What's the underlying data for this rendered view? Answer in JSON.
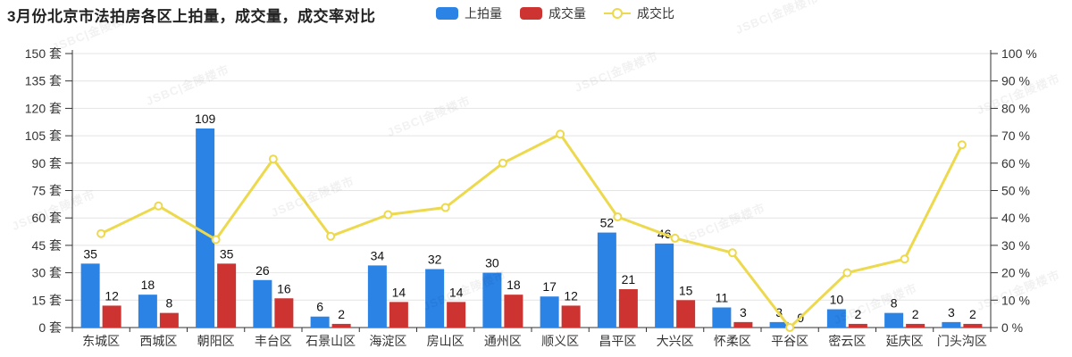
{
  "watermark": {
    "text": "JSBC|金陵楼市"
  },
  "chart_data": {
    "type": "bar",
    "subtype": "grouped-bar-with-line",
    "title": "3月份北京市法拍房各区上拍量，成交量，成交率对比",
    "categories": [
      "东城区",
      "西城区",
      "朝阳区",
      "丰台区",
      "石景山区",
      "海淀区",
      "房山区",
      "通州区",
      "顺义区",
      "昌平区",
      "大兴区",
      "怀柔区",
      "平谷区",
      "密云区",
      "延庆区",
      "门头沟区"
    ],
    "series": [
      {
        "name": "上拍量",
        "type": "bar",
        "axis": "left",
        "color": "#2b83e6",
        "values": [
          35,
          18,
          109,
          26,
          6,
          34,
          32,
          30,
          17,
          52,
          46,
          11,
          3,
          10,
          8,
          3
        ]
      },
      {
        "name": "成交量",
        "type": "bar",
        "axis": "left",
        "color": "#cd3431",
        "values": [
          12,
          8,
          35,
          16,
          2,
          14,
          14,
          18,
          12,
          21,
          15,
          3,
          0,
          2,
          2,
          2
        ]
      },
      {
        "name": "成交比",
        "type": "line",
        "axis": "right",
        "color": "#edd94e",
        "values": [
          34.3,
          44.4,
          32.1,
          61.5,
          33.3,
          41.2,
          43.8,
          60.0,
          70.6,
          40.4,
          32.6,
          27.3,
          0.0,
          20.0,
          25.0,
          66.7
        ]
      }
    ],
    "left_axis": {
      "min": 0,
      "max": 150,
      "step": 15,
      "unit": "套",
      "tick_labels": [
        "0 套",
        "15 套",
        "30 套",
        "45 套",
        "60 套",
        "75 套",
        "90 套",
        "105 套",
        "120 套",
        "135 套",
        "150 套"
      ]
    },
    "right_axis": {
      "min": 0,
      "max": 100,
      "step": 10,
      "unit": "%",
      "tick_labels": [
        "0 %",
        "10 %",
        "20 %",
        "30 %",
        "40 %",
        "50 %",
        "60 %",
        "70 %",
        "80 %",
        "90 %",
        "100 %"
      ]
    },
    "grid": true,
    "legend_position": "top-center"
  }
}
